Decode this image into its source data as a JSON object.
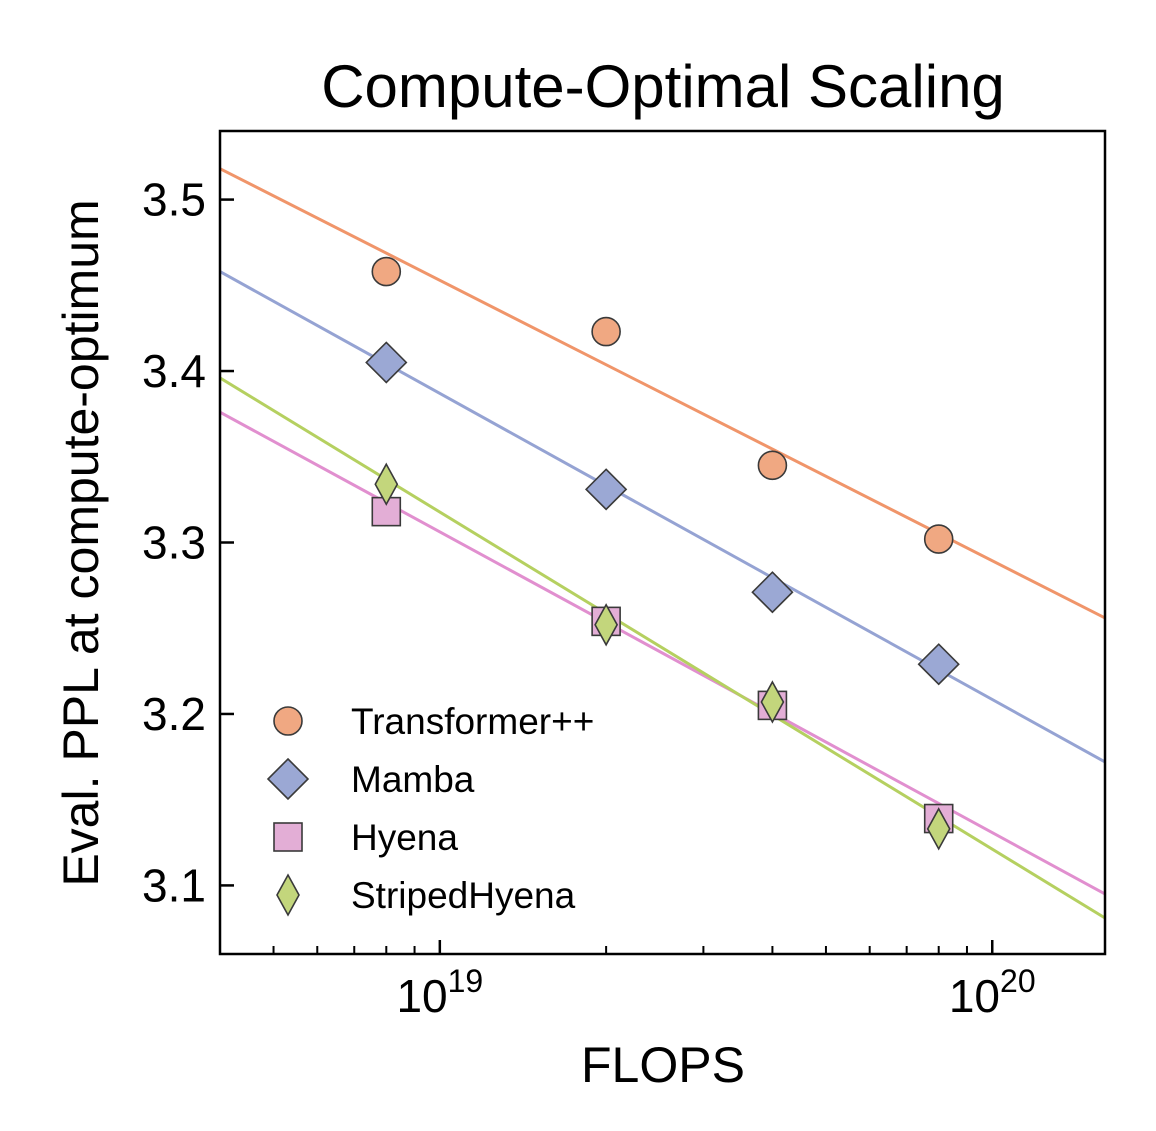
{
  "chart_data": {
    "type": "scatter",
    "title": "Compute-Optimal Scaling",
    "xlabel": "FLOPS",
    "ylabel": "Eval. PPL at compute-optimum",
    "xscale": "log",
    "xlim": [
      4e+18,
      1.6e+20
    ],
    "ylim": [
      3.06,
      3.54
    ],
    "yticks": [
      3.1,
      3.2,
      3.3,
      3.4,
      3.5
    ],
    "ytick_labels": [
      "3.1",
      "3.2",
      "3.3",
      "3.4",
      "3.5"
    ],
    "xticks": [
      1e+19,
      1e+20
    ],
    "xtick_labels": [
      {
        "base": "10",
        "exp": "19"
      },
      {
        "base": "10",
        "exp": "20"
      }
    ],
    "grid": false,
    "legend_position": "bottom-left",
    "series": [
      {
        "name": "Transformer++",
        "marker": "circle",
        "color": "#f0a882",
        "line_color": "#f0956a",
        "points": [
          [
            8e+18,
            3.458
          ],
          [
            2e+19,
            3.423
          ],
          [
            4e+19,
            3.345
          ],
          [
            8e+19,
            3.302
          ]
        ],
        "fit": [
          [
            4e+18,
            3.518
          ],
          [
            1.6e+20,
            3.256
          ]
        ]
      },
      {
        "name": "Mamba",
        "marker": "diamond",
        "color": "#9ba8d4",
        "line_color": "#95a3d3",
        "points": [
          [
            8e+18,
            3.405
          ],
          [
            2e+19,
            3.331
          ],
          [
            4e+19,
            3.271
          ],
          [
            8e+19,
            3.229
          ]
        ],
        "fit": [
          [
            4e+18,
            3.458
          ],
          [
            1.6e+20,
            3.172
          ]
        ]
      },
      {
        "name": "Hyena",
        "marker": "square",
        "color": "#e3aed6",
        "line_color": "#e18fcf",
        "points": [
          [
            8e+18,
            3.318
          ],
          [
            2e+19,
            3.254
          ],
          [
            4e+19,
            3.205
          ],
          [
            8e+19,
            3.139
          ]
        ],
        "fit": [
          [
            4e+18,
            3.376
          ],
          [
            1.6e+20,
            3.095
          ]
        ]
      },
      {
        "name": "StripedHyena",
        "marker": "thin-diamond",
        "color": "#c3d67c",
        "line_color": "#b5d060",
        "points": [
          [
            8e+18,
            3.334
          ],
          [
            2e+19,
            3.252
          ],
          [
            4e+19,
            3.207
          ],
          [
            8e+19,
            3.133
          ]
        ],
        "fit": [
          [
            4e+18,
            3.396
          ],
          [
            1.6e+20,
            3.081
          ]
        ]
      }
    ]
  }
}
